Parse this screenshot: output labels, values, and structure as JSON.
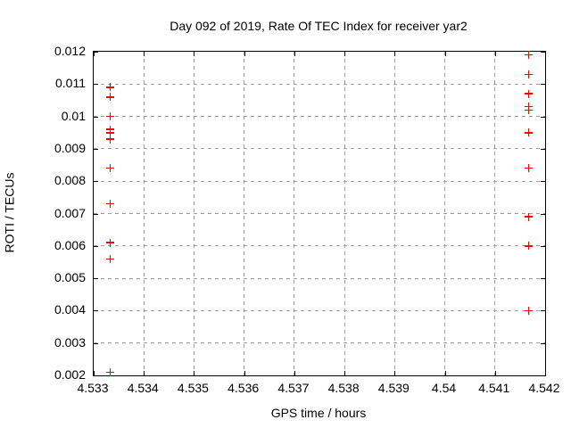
{
  "chart_data": {
    "type": "scatter",
    "title": "Day 092 of 2019, Rate Of TEC Index for receiver yar2",
    "xlabel": "GPS time / hours",
    "ylabel": "ROTI / TECUs",
    "xlim": [
      4.533,
      4.542
    ],
    "ylim": [
      0.002,
      0.012
    ],
    "grid": true,
    "legend": "none",
    "marker": "plus",
    "colors": {
      "marker": "#ff0000",
      "axis": "#000000",
      "grid": "#9e9e9e",
      "background": "#ffffff",
      "text": "#000000"
    },
    "xticks": [
      {
        "value": 4.533,
        "label": "4.533"
      },
      {
        "value": 4.534,
        "label": "4.534"
      },
      {
        "value": 4.535,
        "label": "4.535"
      },
      {
        "value": 4.536,
        "label": "4.536"
      },
      {
        "value": 4.537,
        "label": "4.537"
      },
      {
        "value": 4.538,
        "label": "4.538"
      },
      {
        "value": 4.539,
        "label": "4.539"
      },
      {
        "value": 4.54,
        "label": "4.54"
      },
      {
        "value": 4.541,
        "label": "4.541"
      },
      {
        "value": 4.542,
        "label": "4.542"
      }
    ],
    "yticks": [
      {
        "value": 0.002,
        "label": "0.002"
      },
      {
        "value": 0.003,
        "label": "0.003"
      },
      {
        "value": 0.004,
        "label": "0.004"
      },
      {
        "value": 0.005,
        "label": "0.005"
      },
      {
        "value": 0.006,
        "label": "0.006"
      },
      {
        "value": 0.007,
        "label": "0.007"
      },
      {
        "value": 0.008,
        "label": "0.008"
      },
      {
        "value": 0.009,
        "label": "0.009"
      },
      {
        "value": 0.01,
        "label": "0.01"
      },
      {
        "value": 0.011,
        "label": "0.011"
      },
      {
        "value": 0.012,
        "label": "0.012"
      }
    ],
    "series": [
      {
        "name": "roti",
        "points": [
          {
            "x": 4.53333,
            "y": 0.0109
          },
          {
            "x": 4.53333,
            "y": 0.0106
          },
          {
            "x": 4.53333,
            "y": 0.01
          },
          {
            "x": 4.53333,
            "y": 0.0096
          },
          {
            "x": 4.53333,
            "y": 0.0095
          },
          {
            "x": 4.53333,
            "y": 0.0093
          },
          {
            "x": 4.53333,
            "y": 0.0084
          },
          {
            "x": 4.53333,
            "y": 0.0073
          },
          {
            "x": 4.53333,
            "y": 0.0061
          },
          {
            "x": 4.53333,
            "y": 0.0056
          },
          {
            "x": 4.53333,
            "y": 0.0021
          },
          {
            "x": 4.54167,
            "y": 0.0119
          },
          {
            "x": 4.54167,
            "y": 0.0113
          },
          {
            "x": 4.54167,
            "y": 0.0107
          },
          {
            "x": 4.54167,
            "y": 0.0103
          },
          {
            "x": 4.54167,
            "y": 0.0102
          },
          {
            "x": 4.54167,
            "y": 0.0095
          },
          {
            "x": 4.54167,
            "y": 0.0084
          },
          {
            "x": 4.54167,
            "y": 0.0069
          },
          {
            "x": 4.54167,
            "y": 0.006
          },
          {
            "x": 4.54167,
            "y": 0.004
          }
        ]
      }
    ]
  }
}
